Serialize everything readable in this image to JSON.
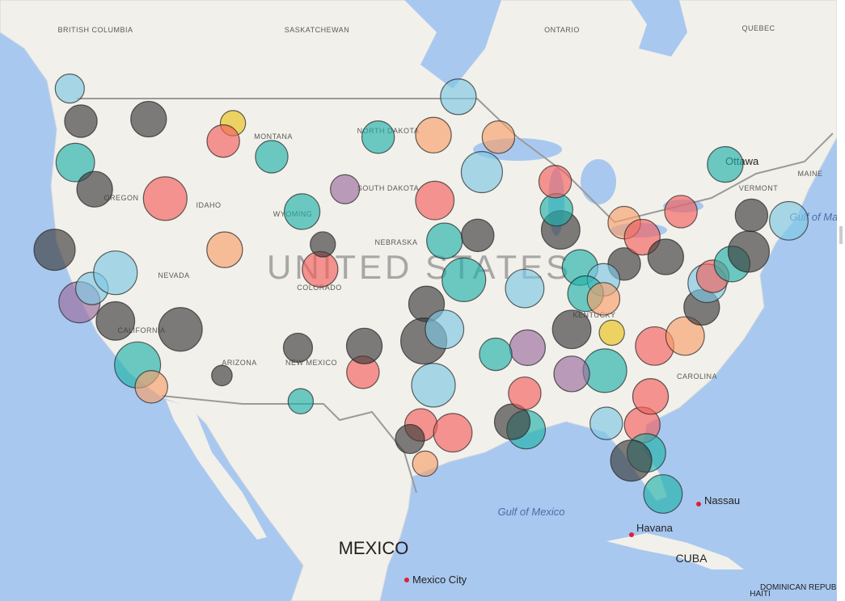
{
  "labels": {
    "british_columbia": "BRITISH COLUMBIA",
    "saskatchewan": "SASKATCHEWAN",
    "ontario": "ONTARIO",
    "quebec": "QUEBEC",
    "montana": "MONTANA",
    "north_dakota": "NORTH DAKOTA",
    "south_dakota": "SOUTH DAKOTA",
    "wyoming": "WYOMING",
    "idaho": "IDAHO",
    "oregon": "OREGON",
    "nebraska": "NEBRASKA",
    "nevada": "NEVADA",
    "colorado": "COLORADO",
    "california": "CALIFORNIA",
    "arizona": "ARIZONA",
    "new_mexico": "NEW MEXICO",
    "kentucky": "KENTUCKY",
    "carolina": "CAROLINA",
    "vermont": "VERMONT",
    "maine": "MAINE",
    "ottawa": "Ottawa",
    "gulf_of_maine": "Gulf of Maine",
    "united_states": "UNITED STATES",
    "mexico": "MEXICO",
    "mexico_city": "Mexico City",
    "gulf_of_mexico": "Gulf of Mexico",
    "nassau": "Nassau",
    "havana": "Havana",
    "cuba": "CUBA",
    "haiti": "HAITI",
    "dominican_republic": "DOMINICAN REPUBLIC"
  },
  "bubbles": [
    {
      "lat": 47.6,
      "lon": -122.3,
      "size": 500,
      "color": "#3b3b3b"
    },
    {
      "lat": 45.5,
      "lon": -122.7,
      "size": 700,
      "color": "#20b2aa"
    },
    {
      "lat": 47.7,
      "lon": -117.4,
      "size": 600,
      "color": "#3b3b3b"
    },
    {
      "lat": 43.6,
      "lon": -116.2,
      "size": 900,
      "color": "#f25f5c"
    },
    {
      "lat": 37.8,
      "lon": -122.4,
      "size": 800,
      "color": "#9b6b9e"
    },
    {
      "lat": 38.6,
      "lon": -121.5,
      "size": 500,
      "color": "#7cc8e3"
    },
    {
      "lat": 34.05,
      "lon": -118.2,
      "size": 1000,
      "color": "#20b2aa"
    },
    {
      "lat": 32.7,
      "lon": -117.2,
      "size": 500,
      "color": "#f79f6b"
    },
    {
      "lat": 36.2,
      "lon": -115.1,
      "size": 900,
      "color": "#3b3b3b"
    },
    {
      "lat": 39.5,
      "lon": -119.8,
      "size": 900,
      "color": "#7cc8e3"
    },
    {
      "lat": 33.4,
      "lon": -112.1,
      "size": 200,
      "color": "#3b3b3b"
    },
    {
      "lat": 40.8,
      "lon": -111.9,
      "size": 600,
      "color": "#f79f6b"
    },
    {
      "lat": 39.7,
      "lon": -105.0,
      "size": 600,
      "color": "#f25f5c"
    },
    {
      "lat": 35.1,
      "lon": -106.6,
      "size": 400,
      "color": "#3b3b3b"
    },
    {
      "lat": 31.8,
      "lon": -106.4,
      "size": 300,
      "color": "#20b2aa"
    },
    {
      "lat": 45.8,
      "lon": -108.5,
      "size": 500,
      "color": "#20b2aa"
    },
    {
      "lat": 47.5,
      "lon": -111.3,
      "size": 300,
      "color": "#e8c21a"
    },
    {
      "lat": 41.1,
      "lon": -104.8,
      "size": 300,
      "color": "#3b3b3b"
    },
    {
      "lat": 46.9,
      "lon": -96.8,
      "size": 600,
      "color": "#f79f6b"
    },
    {
      "lat": 43.5,
      "lon": -96.7,
      "size": 700,
      "color": "#f25f5c"
    },
    {
      "lat": 41.3,
      "lon": -96.0,
      "size": 600,
      "color": "#20b2aa"
    },
    {
      "lat": 45.0,
      "lon": -93.3,
      "size": 800,
      "color": "#7cc8e3"
    },
    {
      "lat": 41.6,
      "lon": -93.6,
      "size": 500,
      "color": "#3b3b3b"
    },
    {
      "lat": 39.1,
      "lon": -94.6,
      "size": 900,
      "color": "#20b2aa"
    },
    {
      "lat": 37.7,
      "lon": -97.3,
      "size": 600,
      "color": "#3b3b3b"
    },
    {
      "lat": 35.5,
      "lon": -97.5,
      "size": 1000,
      "color": "#3b3b3b"
    },
    {
      "lat": 36.2,
      "lon": -96.0,
      "size": 700,
      "color": "#7cc8e3"
    },
    {
      "lat": 32.8,
      "lon": -96.8,
      "size": 900,
      "color": "#7cc8e3"
    },
    {
      "lat": 30.3,
      "lon": -97.7,
      "size": 500,
      "color": "#f25f5c"
    },
    {
      "lat": 29.4,
      "lon": -98.5,
      "size": 400,
      "color": "#3b3b3b"
    },
    {
      "lat": 29.8,
      "lon": -95.4,
      "size": 700,
      "color": "#f25f5c"
    },
    {
      "lat": 27.8,
      "lon": -97.4,
      "size": 300,
      "color": "#f79f6b"
    },
    {
      "lat": 33.6,
      "lon": -101.9,
      "size": 500,
      "color": "#f25f5c"
    },
    {
      "lat": 35.2,
      "lon": -101.8,
      "size": 600,
      "color": "#3b3b3b"
    },
    {
      "lat": 30.0,
      "lon": -90.1,
      "size": 700,
      "color": "#20b2aa"
    },
    {
      "lat": 30.5,
      "lon": -91.1,
      "size": 600,
      "color": "#3b3b3b"
    },
    {
      "lat": 32.3,
      "lon": -90.2,
      "size": 500,
      "color": "#f25f5c"
    },
    {
      "lat": 35.1,
      "lon": -90.0,
      "size": 600,
      "color": "#9b6b9e"
    },
    {
      "lat": 34.7,
      "lon": -92.3,
      "size": 500,
      "color": "#20b2aa"
    },
    {
      "lat": 38.6,
      "lon": -90.2,
      "size": 700,
      "color": "#7cc8e3"
    },
    {
      "lat": 41.9,
      "lon": -87.6,
      "size": 700,
      "color": "#3b3b3b"
    },
    {
      "lat": 43.0,
      "lon": -87.9,
      "size": 500,
      "color": "#20b2aa"
    },
    {
      "lat": 42.3,
      "lon": -83.0,
      "size": 500,
      "color": "#f79f6b"
    },
    {
      "lat": 39.8,
      "lon": -86.2,
      "size": 600,
      "color": "#20b2aa"
    },
    {
      "lat": 40.0,
      "lon": -83.0,
      "size": 500,
      "color": "#3b3b3b"
    },
    {
      "lat": 41.5,
      "lon": -81.7,
      "size": 600,
      "color": "#f25f5c"
    },
    {
      "lat": 39.1,
      "lon": -84.5,
      "size": 500,
      "color": "#7cc8e3"
    },
    {
      "lat": 38.3,
      "lon": -85.8,
      "size": 600,
      "color": "#20b2aa"
    },
    {
      "lat": 36.2,
      "lon": -86.8,
      "size": 700,
      "color": "#3b3b3b"
    },
    {
      "lat": 33.7,
      "lon": -84.4,
      "size": 900,
      "color": "#20b2aa"
    },
    {
      "lat": 33.5,
      "lon": -86.8,
      "size": 600,
      "color": "#9b6b9e"
    },
    {
      "lat": 35.2,
      "lon": -80.8,
      "size": 700,
      "color": "#f25f5c"
    },
    {
      "lat": 35.8,
      "lon": -78.6,
      "size": 700,
      "color": "#f79f6b"
    },
    {
      "lat": 37.5,
      "lon": -77.4,
      "size": 600,
      "color": "#3b3b3b"
    },
    {
      "lat": 38.9,
      "lon": -77.0,
      "size": 700,
      "color": "#7cc8e3"
    },
    {
      "lat": 39.3,
      "lon": -76.6,
      "size": 500,
      "color": "#f25f5c"
    },
    {
      "lat": 40.0,
      "lon": -75.2,
      "size": 600,
      "color": "#20b2aa"
    },
    {
      "lat": 40.7,
      "lon": -74.0,
      "size": 800,
      "color": "#3b3b3b"
    },
    {
      "lat": 42.4,
      "lon": -71.1,
      "size": 700,
      "color": "#7cc8e3"
    },
    {
      "lat": 40.4,
      "lon": -80.0,
      "size": 600,
      "color": "#3b3b3b"
    },
    {
      "lat": 42.9,
      "lon": -78.9,
      "size": 500,
      "color": "#f25f5c"
    },
    {
      "lat": 42.7,
      "lon": -73.8,
      "size": 500,
      "color": "#3b3b3b"
    },
    {
      "lat": 30.3,
      "lon": -81.7,
      "size": 600,
      "color": "#f25f5c"
    },
    {
      "lat": 28.5,
      "lon": -81.4,
      "size": 700,
      "color": "#20b2aa"
    },
    {
      "lat": 28.0,
      "lon": -82.5,
      "size": 800,
      "color": "#3b3b3b"
    },
    {
      "lat": 25.8,
      "lon": -80.2,
      "size": 700,
      "color": "#20b2aa"
    },
    {
      "lat": 30.4,
      "lon": -84.3,
      "size": 500,
      "color": "#7cc8e3"
    },
    {
      "lat": 32.1,
      "lon": -81.1,
      "size": 600,
      "color": "#f25f5c"
    },
    {
      "lat": 46.8,
      "lon": -92.1,
      "size": 500,
      "color": "#f79f6b"
    },
    {
      "lat": 44.5,
      "lon": -88.0,
      "size": 500,
      "color": "#f25f5c"
    },
    {
      "lat": 46.8,
      "lon": -100.8,
      "size": 500,
      "color": "#20b2aa"
    },
    {
      "lat": 44.1,
      "lon": -103.2,
      "size": 400,
      "color": "#9b6b9e"
    },
    {
      "lat": 42.9,
      "lon": -106.3,
      "size": 600,
      "color": "#20b2aa"
    },
    {
      "lat": 46.6,
      "lon": -112.0,
      "size": 500,
      "color": "#f25f5c"
    },
    {
      "lat": 44.1,
      "lon": -121.3,
      "size": 600,
      "color": "#3b3b3b"
    },
    {
      "lat": 40.8,
      "lon": -124.2,
      "size": 800,
      "color": "#3b3b3b"
    },
    {
      "lat": 36.7,
      "lon": -119.8,
      "size": 700,
      "color": "#3b3b3b"
    },
    {
      "lat": 45.4,
      "lon": -75.7,
      "size": 600,
      "color": "#20b2aa"
    },
    {
      "lat": 36.0,
      "lon": -83.9,
      "size": 300,
      "color": "#e8c21a"
    },
    {
      "lat": 38.0,
      "lon": -84.5,
      "size": 500,
      "color": "#f79f6b"
    },
    {
      "lat": 49.2,
      "lon": -123.1,
      "size": 400,
      "color": "#7cc8e3"
    },
    {
      "lat": 48.8,
      "lon": -95.0,
      "size": 600,
      "color": "#7cc8e3"
    }
  ]
}
